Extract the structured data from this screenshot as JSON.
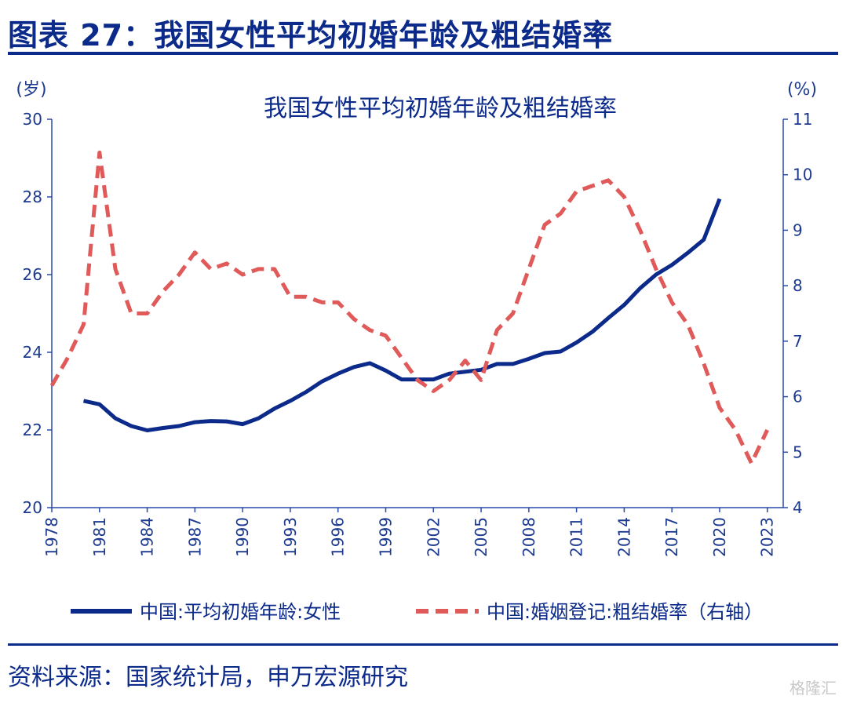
{
  "header": {
    "title": "图表 27：我国女性平均初婚年龄及粗结婚率"
  },
  "source": "资料来源：国家统计局，申万宏源研究",
  "watermark": "格隆汇",
  "chart_data": {
    "type": "line",
    "title": "我国女性平均初婚年龄及粗结婚率",
    "y_left_unit": "(岁)",
    "y_right_unit": "(%)",
    "xlim": [
      1978,
      2024
    ],
    "ylim_left": [
      20,
      30
    ],
    "ylim_right": [
      4,
      11
    ],
    "x_ticks": [
      "1978",
      "1981",
      "1984",
      "1987",
      "1990",
      "1993",
      "1996",
      "1999",
      "2002",
      "2005",
      "2008",
      "2011",
      "2014",
      "2017",
      "2020",
      "2023"
    ],
    "y_left_ticks": [
      "20",
      "22",
      "24",
      "26",
      "28",
      "30"
    ],
    "y_right_ticks": [
      "4",
      "5",
      "6",
      "7",
      "8",
      "9",
      "10",
      "11"
    ],
    "legend_position": "bottom",
    "series": [
      {
        "name": "中国:平均初婚年龄:女性",
        "axis": "left",
        "color": "#0b2a8a",
        "style": "solid",
        "x": [
          1980,
          1981,
          1982,
          1983,
          1984,
          1985,
          1986,
          1987,
          1988,
          1989,
          1990,
          1991,
          1992,
          1993,
          1994,
          1995,
          1996,
          1997,
          1998,
          1999,
          2000,
          2001,
          2002,
          2003,
          2004,
          2005,
          2006,
          2007,
          2008,
          2009,
          2010,
          2011,
          2012,
          2013,
          2014,
          2015,
          2016,
          2017,
          2018,
          2019,
          2020
        ],
        "values": [
          22.75,
          22.66,
          22.3,
          22.1,
          21.99,
          22.05,
          22.1,
          22.2,
          22.23,
          22.22,
          22.15,
          22.3,
          22.55,
          22.75,
          22.98,
          23.25,
          23.45,
          23.62,
          23.72,
          23.53,
          23.3,
          23.3,
          23.3,
          23.45,
          23.5,
          23.55,
          23.7,
          23.7,
          23.83,
          23.98,
          24.02,
          24.25,
          24.53,
          24.88,
          25.22,
          25.65,
          26.0,
          26.25,
          26.56,
          26.9,
          27.95
        ]
      },
      {
        "name": "中国:婚姻登记:粗结婚率（右轴）",
        "axis": "right",
        "color": "#e05a5a",
        "style": "dashed",
        "x": [
          1978,
          1979,
          1980,
          1981,
          1982,
          1983,
          1984,
          1985,
          1986,
          1987,
          1988,
          1989,
          1990,
          1991,
          1992,
          1993,
          1994,
          1995,
          1996,
          1997,
          1998,
          1999,
          2000,
          2001,
          2002,
          2003,
          2004,
          2005,
          2006,
          2007,
          2008,
          2009,
          2010,
          2011,
          2012,
          2013,
          2014,
          2015,
          2016,
          2017,
          2018,
          2019,
          2020,
          2021,
          2022,
          2023
        ],
        "values": [
          6.2,
          6.7,
          7.3,
          10.4,
          8.3,
          7.5,
          7.5,
          7.9,
          8.2,
          8.6,
          8.3,
          8.4,
          8.2,
          8.3,
          8.3,
          7.8,
          7.8,
          7.7,
          7.7,
          7.4,
          7.2,
          7.1,
          6.7,
          6.3,
          6.1,
          6.3,
          6.65,
          6.3,
          7.2,
          7.5,
          8.3,
          9.1,
          9.3,
          9.7,
          9.8,
          9.9,
          9.6,
          9.0,
          8.3,
          7.7,
          7.3,
          6.6,
          5.8,
          5.4,
          4.8,
          5.4
        ]
      }
    ]
  }
}
